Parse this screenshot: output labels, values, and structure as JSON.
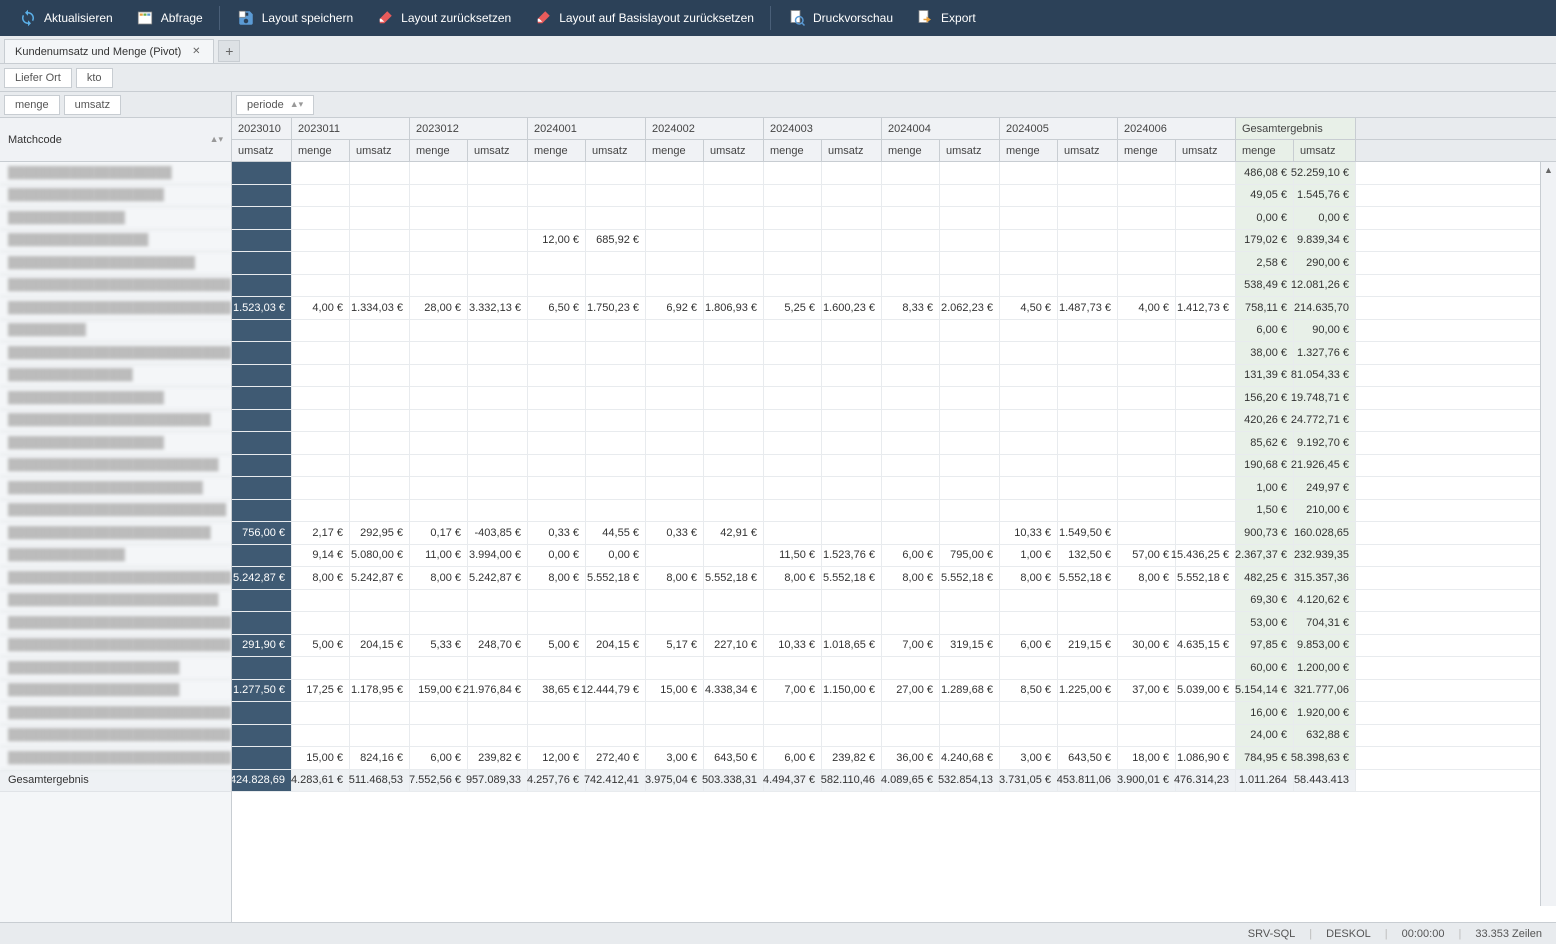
{
  "toolbar": {
    "refresh": "Aktualisieren",
    "query": "Abfrage",
    "save_layout": "Layout speichern",
    "reset_layout": "Layout zurücksetzen",
    "reset_base": "Layout auf Basislayout zurücksetzen",
    "preview": "Druckvorschau",
    "export": "Export"
  },
  "tabs": {
    "title": "Kundenumsatz und Menge (Pivot)"
  },
  "filters": {
    "f1": "Liefer Ort",
    "f2": "kto"
  },
  "colfields_left": {
    "c1": "menge",
    "c2": "umsatz"
  },
  "colfields_right": {
    "period": "periode"
  },
  "rowfield": "Matchcode",
  "periods": [
    "2023010",
    "2023011",
    "2023012",
    "2024001",
    "2024002",
    "2024003",
    "2024004",
    "2024005",
    "2024006"
  ],
  "gesamtergebnis": "Gesamtergebnis",
  "sub_umsatz": "umsatz",
  "sub_menge": "menge",
  "col_w": {
    "first": 60,
    "menge": 58,
    "umsatz": 60,
    "ge_menge": 58,
    "ge_umsatz": 62
  },
  "rows": [
    {
      "label": "█████████████████████",
      "first": "",
      "cells": [
        "",
        "",
        "",
        "",
        "",
        "",
        "",
        "",
        "",
        "",
        "",
        "",
        "",
        "",
        "",
        "",
        "",
        ""
      ],
      "ge": [
        "486,08 €",
        "52.259,10 €"
      ]
    },
    {
      "label": "████████████████████",
      "first": "",
      "cells": [
        "",
        "",
        "",
        "",
        "",
        "",
        "",
        "",
        "",
        "",
        "",
        "",
        "",
        "",
        "",
        "",
        "",
        ""
      ],
      "ge": [
        "49,05 €",
        "1.545,76 €"
      ]
    },
    {
      "label": "███████████████",
      "first": "",
      "cells": [
        "",
        "",
        "",
        "",
        "",
        "",
        "",
        "",
        "",
        "",
        "",
        "",
        "",
        "",
        "",
        "",
        "",
        ""
      ],
      "ge": [
        "0,00 €",
        "0,00 €"
      ]
    },
    {
      "label": "██████████████████",
      "first": "",
      "cells": [
        "",
        "",
        "",
        "",
        "12,00 €",
        "685,92 €",
        "",
        "",
        "",
        "",
        "",
        "",
        "",
        "",
        "",
        "",
        "",
        ""
      ],
      "ge": [
        "179,02 €",
        "9.839,34 €"
      ]
    },
    {
      "label": "████████████████████████",
      "first": "",
      "cells": [
        "",
        "",
        "",
        "",
        "",
        "",
        "",
        "",
        "",
        "",
        "",
        "",
        "",
        "",
        "",
        "",
        "",
        ""
      ],
      "ge": [
        "2,58 €",
        "290,00 €"
      ]
    },
    {
      "label": "███████████████████████████████",
      "first": "",
      "cells": [
        "",
        "",
        "",
        "",
        "",
        "",
        "",
        "",
        "",
        "",
        "",
        "",
        "",
        "",
        "",
        "",
        "",
        ""
      ],
      "ge": [
        "538,49 €",
        "12.081,26 €"
      ]
    },
    {
      "label": "████████████████████████████████",
      "first": "1.523,03 €",
      "cells": [
        "4,00 €",
        "1.334,03 €",
        "28,00 €",
        "3.332,13 €",
        "6,50 €",
        "1.750,23 €",
        "6,92 €",
        "1.806,93 €",
        "5,25 €",
        "1.600,23 €",
        "8,33 €",
        "2.062,23 €",
        "4,50 €",
        "1.487,73 €",
        "4,00 €",
        "1.412,73 €",
        "",
        ""
      ],
      "ge": [
        "758,11 €",
        "214.635,70"
      ]
    },
    {
      "label": "██████████",
      "first": "",
      "cells": [
        "",
        "",
        "",
        "",
        "",
        "",
        "",
        "",
        "",
        "",
        "",
        "",
        "",
        "",
        "",
        "",
        "",
        ""
      ],
      "ge": [
        "6,00 €",
        "90,00 €"
      ]
    },
    {
      "label": "█████████████████████████████",
      "first": "",
      "cells": [
        "",
        "",
        "",
        "",
        "",
        "",
        "",
        "",
        "",
        "",
        "",
        "",
        "",
        "",
        "",
        "",
        "",
        ""
      ],
      "ge": [
        "38,00 €",
        "1.327,76 €"
      ]
    },
    {
      "label": "████████████████",
      "first": "",
      "cells": [
        "",
        "",
        "",
        "",
        "",
        "",
        "",
        "",
        "",
        "",
        "",
        "",
        "",
        "",
        "",
        "",
        "",
        ""
      ],
      "ge": [
        "131,39 €",
        "81.054,33 €"
      ]
    },
    {
      "label": "████████████████████",
      "first": "",
      "cells": [
        "",
        "",
        "",
        "",
        "",
        "",
        "",
        "",
        "",
        "",
        "",
        "",
        "",
        "",
        "",
        "",
        "",
        ""
      ],
      "ge": [
        "156,20 €",
        "19.748,71 €"
      ]
    },
    {
      "label": "██████████████████████████",
      "first": "",
      "cells": [
        "",
        "",
        "",
        "",
        "",
        "",
        "",
        "",
        "",
        "",
        "",
        "",
        "",
        "",
        "",
        "",
        "",
        ""
      ],
      "ge": [
        "420,26 €",
        "24.772,71 €"
      ]
    },
    {
      "label": "████████████████████",
      "first": "",
      "cells": [
        "",
        "",
        "",
        "",
        "",
        "",
        "",
        "",
        "",
        "",
        "",
        "",
        "",
        "",
        "",
        "",
        "",
        ""
      ],
      "ge": [
        "85,62 €",
        "9.192,70 €"
      ]
    },
    {
      "label": "███████████████████████████",
      "first": "",
      "cells": [
        "",
        "",
        "",
        "",
        "",
        "",
        "",
        "",
        "",
        "",
        "",
        "",
        "",
        "",
        "",
        "",
        "",
        ""
      ],
      "ge": [
        "190,68 €",
        "21.926,45 €"
      ]
    },
    {
      "label": "█████████████████████████",
      "first": "",
      "cells": [
        "",
        "",
        "",
        "",
        "",
        "",
        "",
        "",
        "",
        "",
        "",
        "",
        "",
        "",
        "",
        "",
        "",
        ""
      ],
      "ge": [
        "1,00 €",
        "249,97 €"
      ]
    },
    {
      "label": "████████████████████████████",
      "first": "",
      "cells": [
        "",
        "",
        "",
        "",
        "",
        "",
        "",
        "",
        "",
        "",
        "",
        "",
        "",
        "",
        "",
        "",
        "",
        ""
      ],
      "ge": [
        "1,50 €",
        "210,00 €"
      ]
    },
    {
      "label": "██████████████████████████",
      "first": "756,00 €",
      "cells": [
        "2,17 €",
        "292,95 €",
        "0,17 €",
        "-403,85 €",
        "0,33 €",
        "44,55 €",
        "0,33 €",
        "42,91 €",
        "",
        "",
        "",
        "",
        "10,33 €",
        "1.549,50 €",
        "",
        "",
        "",
        ""
      ],
      "ge": [
        "900,73 €",
        "160.028,65"
      ]
    },
    {
      "label": "███████████████",
      "first": "",
      "cells": [
        "9,14 €",
        "5.080,00 €",
        "11,00 €",
        "3.994,00 €",
        "0,00 €",
        "0,00 €",
        "",
        "",
        "11,50 €",
        "1.523,76 €",
        "6,00 €",
        "795,00 €",
        "1,00 €",
        "132,50 €",
        "57,00 €",
        "15.436,25 €",
        "",
        ""
      ],
      "ge": [
        "2.367,37 €",
        "232.939,35"
      ]
    },
    {
      "label": "███████████████████████████████",
      "first": "5.242,87 €",
      "cells": [
        "8,00 €",
        "5.242,87 €",
        "8,00 €",
        "5.242,87 €",
        "8,00 €",
        "5.552,18 €",
        "8,00 €",
        "5.552,18 €",
        "8,00 €",
        "5.552,18 €",
        "8,00 €",
        "5.552,18 €",
        "8,00 €",
        "5.552,18 €",
        "8,00 €",
        "5.552,18 €",
        "",
        ""
      ],
      "ge": [
        "482,25 €",
        "315.357,36"
      ]
    },
    {
      "label": "███████████████████████████",
      "first": "",
      "cells": [
        "",
        "",
        "",
        "",
        "",
        "",
        "",
        "",
        "",
        "",
        "",
        "",
        "",
        "",
        "",
        "",
        "",
        ""
      ],
      "ge": [
        "69,30 €",
        "4.120,62 €"
      ]
    },
    {
      "label": "███████████████████████████████",
      "first": "",
      "cells": [
        "",
        "",
        "",
        "",
        "",
        "",
        "",
        "",
        "",
        "",
        "",
        "",
        "",
        "",
        "",
        "",
        "",
        ""
      ],
      "ge": [
        "53,00 €",
        "704,31 €"
      ]
    },
    {
      "label": "█████████████████████████████████",
      "first": "291,90 €",
      "cells": [
        "5,00 €",
        "204,15 €",
        "5,33 €",
        "248,70 €",
        "5,00 €",
        "204,15 €",
        "5,17 €",
        "227,10 €",
        "10,33 €",
        "1.018,65 €",
        "7,00 €",
        "319,15 €",
        "6,00 €",
        "219,15 €",
        "30,00 €",
        "4.635,15 €",
        "",
        ""
      ],
      "ge": [
        "97,85 €",
        "9.853,00 €"
      ]
    },
    {
      "label": "██████████████████████",
      "first": "",
      "cells": [
        "",
        "",
        "",
        "",
        "",
        "",
        "",
        "",
        "",
        "",
        "",
        "",
        "",
        "",
        "",
        "",
        "",
        ""
      ],
      "ge": [
        "60,00 €",
        "1.200,00 €"
      ]
    },
    {
      "label": "██████████████████████",
      "first": "1.277,50 €",
      "cells": [
        "17,25 €",
        "1.178,95 €",
        "159,00 €",
        "21.976,84 €",
        "38,65 €",
        "12.444,79 €",
        "15,00 €",
        "4.338,34 €",
        "7,00 €",
        "1.150,00 €",
        "27,00 €",
        "1.289,68 €",
        "8,50 €",
        "1.225,00 €",
        "37,00 €",
        "5.039,00 €",
        "",
        ""
      ],
      "ge": [
        "5.154,14 €",
        "321.777,06"
      ]
    },
    {
      "label": "█████████████████████████████",
      "first": "",
      "cells": [
        "",
        "",
        "",
        "",
        "",
        "",
        "",
        "",
        "",
        "",
        "",
        "",
        "",
        "",
        "",
        "",
        "",
        ""
      ],
      "ge": [
        "16,00 €",
        "1.920,00 €"
      ]
    },
    {
      "label": "█████████████████████████████████",
      "first": "",
      "cells": [
        "",
        "",
        "",
        "",
        "",
        "",
        "",
        "",
        "",
        "",
        "",
        "",
        "",
        "",
        "",
        "",
        "",
        ""
      ],
      "ge": [
        "24,00 €",
        "632,88 €"
      ]
    },
    {
      "label": "█████████████████████████████",
      "first": "",
      "cells": [
        "15,00 €",
        "824,16 €",
        "6,00 €",
        "239,82 €",
        "12,00 €",
        "272,40 €",
        "3,00 €",
        "643,50 €",
        "6,00 €",
        "239,82 €",
        "36,00 €",
        "4.240,68 €",
        "3,00 €",
        "643,50 €",
        "18,00 €",
        "1.086,90 €",
        "",
        ""
      ],
      "ge": [
        "784,95 €",
        "58.398,63 €"
      ]
    }
  ],
  "total": {
    "label": "Gesamtergebnis",
    "first": "424.828,69",
    "cells": [
      "4.283,61 €",
      "511.468,53",
      "7.552,56 €",
      "957.089,33",
      "4.257,76 €",
      "742.412,41",
      "3.975,04 €",
      "503.338,31",
      "4.494,37 €",
      "582.110,46",
      "4.089,65 €",
      "532.854,13",
      "3.731,05 €",
      "453.811,06",
      "3.900,01 €",
      "476.314,23",
      "",
      ""
    ],
    "ge": [
      "1.011.264",
      "58.443.413"
    ]
  },
  "status": {
    "server": "SRV-SQL",
    "db": "DESKOL",
    "time": "00:00:00",
    "rows": "33.353 Zeilen"
  }
}
